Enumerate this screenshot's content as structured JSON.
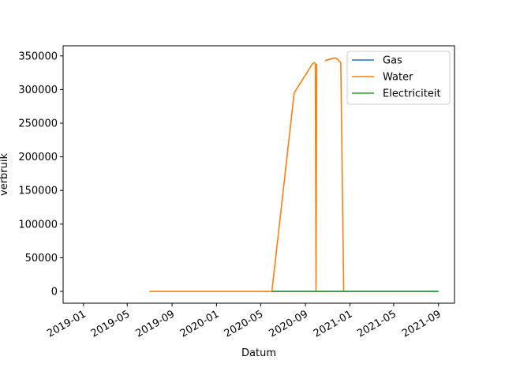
{
  "chart_data": {
    "type": "line",
    "title": "",
    "xlabel": "Datum",
    "ylabel": "verbruik",
    "x_axis_type": "date",
    "xlim": [
      "2018-11-06",
      "2021-10-15"
    ],
    "ylim": [
      -17500,
      365000
    ],
    "x_ticks": [
      "2019-01-01",
      "2019-05-01",
      "2019-09-01",
      "2020-01-01",
      "2020-05-01",
      "2020-09-01",
      "2021-01-01",
      "2021-05-01",
      "2021-09-01"
    ],
    "x_tick_labels": [
      "2019-01",
      "2019-05",
      "2019-09",
      "2020-01",
      "2020-05",
      "2020-09",
      "2021-01",
      "2021-05",
      "2021-09"
    ],
    "y_ticks": [
      0,
      50000,
      100000,
      150000,
      200000,
      250000,
      300000,
      350000
    ],
    "y_tick_labels": [
      "0",
      "50000",
      "100000",
      "150000",
      "200000",
      "250000",
      "300000",
      "350000"
    ],
    "grid": false,
    "legend_position": "top-right",
    "series": [
      {
        "name": "Gas",
        "color": "#1f77b4",
        "points": [
          [
            "2020-06-01",
            0
          ],
          [
            "2021-09-01",
            0
          ]
        ]
      },
      {
        "name": "Water",
        "color": "#ff7f0e",
        "points": [
          [
            "2019-07-01",
            0
          ],
          [
            "2020-06-01",
            0
          ],
          [
            "2020-08-01",
            295000
          ],
          [
            "2020-09-20",
            338000
          ],
          [
            "2020-09-25",
            340000
          ],
          [
            "2020-09-28",
            339000
          ],
          [
            "2020-09-30",
            0
          ],
          [
            "2020-10-02",
            338000
          ],
          null,
          [
            "2020-10-25",
            343000
          ],
          [
            "2020-11-20",
            347000
          ],
          [
            "2020-11-28",
            345000
          ],
          [
            "2020-12-07",
            340000
          ],
          [
            "2020-12-15",
            0
          ]
        ]
      },
      {
        "name": "Electriciteit",
        "color": "#2ca02c",
        "points": [
          [
            "2020-06-01",
            0
          ],
          [
            "2020-10-04",
            0
          ],
          null,
          [
            "2020-10-06",
            0
          ],
          [
            "2021-09-01",
            0
          ]
        ]
      }
    ]
  }
}
